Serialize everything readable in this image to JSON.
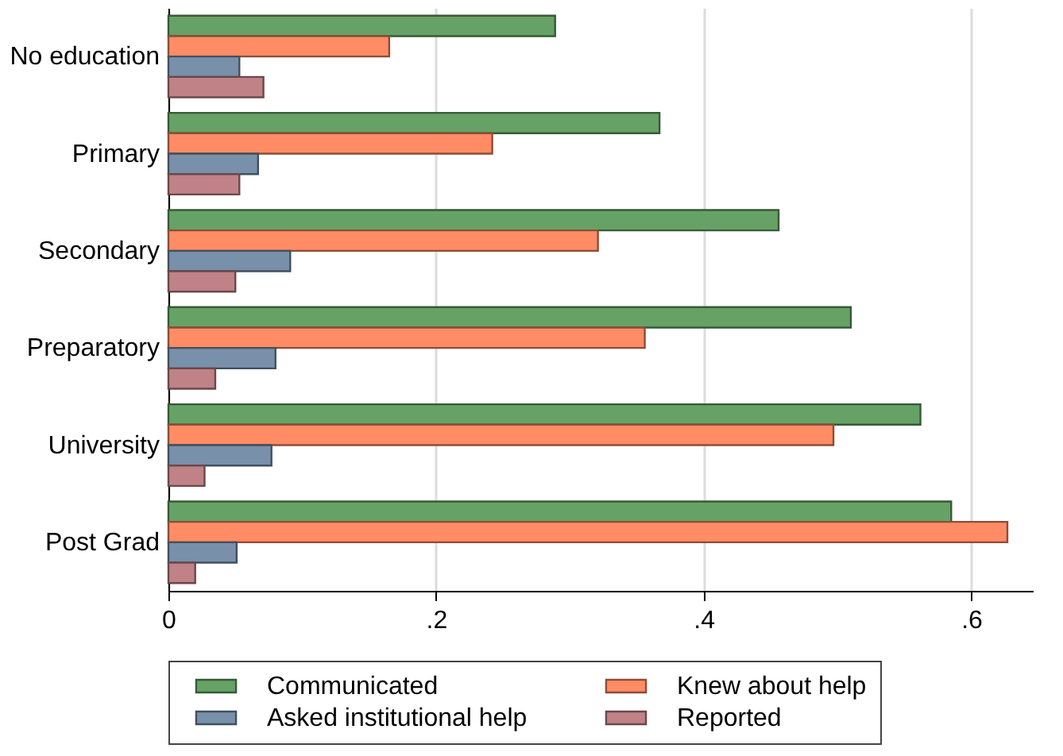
{
  "chart_data": {
    "type": "bar",
    "orientation": "horizontal",
    "categories": [
      "No education",
      "Primary",
      "Secondary",
      "Preparatory",
      "University",
      "Post Grad"
    ],
    "series": [
      {
        "name": "Communicated",
        "color": "#66a266",
        "values": [
          0.289,
          0.367,
          0.456,
          0.51,
          0.562,
          0.585
        ]
      },
      {
        "name": "Knew about help",
        "color": "#ff8c64",
        "values": [
          0.165,
          0.242,
          0.321,
          0.356,
          0.497,
          0.627
        ]
      },
      {
        "name": "Asked institutional help",
        "color": "#7890aa",
        "values": [
          0.053,
          0.067,
          0.091,
          0.08,
          0.077,
          0.051
        ]
      },
      {
        "name": "Reported",
        "color": "#c08286",
        "values": [
          0.071,
          0.053,
          0.05,
          0.035,
          0.027,
          0.02
        ]
      }
    ],
    "xlim": [
      0,
      0.646
    ],
    "xticks": [
      0,
      {
        "value": 0.2,
        "label": ".2"
      },
      {
        "value": 0.4,
        "label": ".4"
      },
      {
        "value": 0.6,
        "label": ".6"
      }
    ],
    "grid": "x",
    "legend": "bottom"
  }
}
